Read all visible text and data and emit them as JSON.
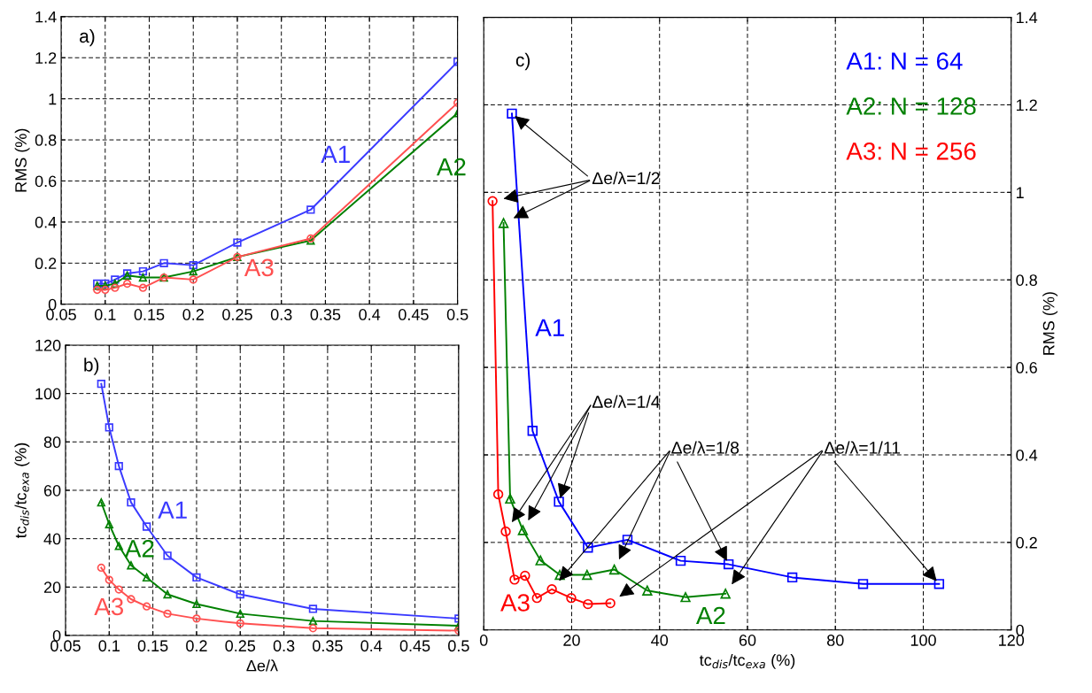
{
  "chart_data": [
    {
      "type": "line",
      "ylabel": "RMS (%)",
      "x": [
        0.0909,
        0.1,
        0.1111,
        0.125,
        0.1429,
        0.1667,
        0.2,
        0.25,
        0.3333,
        0.5
      ],
      "series": [
        {
          "color": "#3a3aff",
          "marker": "square",
          "values": [
            0.1,
            0.1,
            0.12,
            0.15,
            0.16,
            0.2,
            0.19,
            0.3,
            0.46,
            1.18
          ]
        },
        {
          "color": "#008000",
          "marker": "triangle",
          "values": [
            0.09,
            0.09,
            0.1,
            0.14,
            0.13,
            0.13,
            0.16,
            0.23,
            0.31,
            0.93
          ]
        },
        {
          "color": "#ff5050",
          "marker": "circle",
          "values": [
            0.07,
            0.07,
            0.08,
            0.1,
            0.08,
            0.13,
            0.12,
            0.23,
            0.32,
            0.98
          ]
        }
      ],
      "xlim": [
        0.05,
        0.5
      ],
      "xticks": [
        0.05,
        0.1,
        0.15,
        0.2,
        0.25,
        0.3,
        0.35,
        0.4,
        0.45,
        0.5
      ],
      "ylim": [
        0,
        1.4
      ],
      "yticks": [
        0,
        0.2,
        0.4,
        0.6,
        0.8,
        1,
        1.2,
        1.4
      ],
      "grid": true,
      "line_style": "solid",
      "annotations": [
        "a)",
        "A1",
        "A2",
        "A3"
      ]
    },
    {
      "type": "line",
      "xlabel": "Δe/λ",
      "ylabel": "tc$_{dis}$/tc$_{exa}$ (%)",
      "x": [
        0.0909,
        0.1,
        0.1111,
        0.125,
        0.1429,
        0.1667,
        0.2,
        0.25,
        0.3333,
        0.5
      ],
      "series": [
        {
          "color": "#3a3aff",
          "marker": "square",
          "values": [
            104,
            86,
            70,
            55,
            45,
            33,
            24,
            17,
            11,
            7
          ]
        },
        {
          "color": "#008000",
          "marker": "triangle",
          "values": [
            55,
            46,
            37,
            29,
            24,
            17,
            13,
            9,
            6,
            4
          ]
        },
        {
          "color": "#ff5050",
          "marker": "circle",
          "values": [
            28,
            23,
            19,
            15,
            12,
            9,
            7,
            5,
            3,
            2
          ]
        }
      ],
      "xlim": [
        0.05,
        0.5
      ],
      "xticks": [
        0.05,
        0.1,
        0.15,
        0.2,
        0.25,
        0.3,
        0.35,
        0.4,
        0.45,
        0.5
      ],
      "ylim": [
        0,
        120
      ],
      "yticks": [
        0,
        20,
        40,
        60,
        80,
        100,
        120
      ],
      "grid": true,
      "line_style": "solid",
      "annotations": [
        "b)",
        "A1",
        "A2",
        "A3"
      ]
    },
    {
      "type": "line",
      "xlabel": "tc$_{dis}$/tc$_{exa}$ (%)",
      "ylabel": "RMS (%)",
      "series": [
        {
          "name": "A1: N = 64",
          "color": "#0000ff",
          "marker": "square",
          "x": [
            103.6,
            86.3,
            70.2,
            55.7,
            44.8,
            32.7,
            23.7,
            17.1,
            11.1,
            6.4
          ],
          "values": [
            0.105,
            0.105,
            0.12,
            0.15,
            0.158,
            0.206,
            0.188,
            0.293,
            0.455,
            1.18
          ]
        },
        {
          "name": "A2: N = 128",
          "color": "#008000",
          "marker": "triangle",
          "x": [
            55,
            45.9,
            37.2,
            29.7,
            23.5,
            17.3,
            12.9,
            8.9,
            6.0,
            4.5
          ],
          "values": [
            0.083,
            0.075,
            0.09,
            0.138,
            0.126,
            0.126,
            0.159,
            0.228,
            0.3,
            0.93
          ]
        },
        {
          "name": "A3: N = 256",
          "color": "#ff0000",
          "marker": "circle",
          "x": [
            28.8,
            23.7,
            19.9,
            15.5,
            12.1,
            9.4,
            7.0,
            5.0,
            3.3,
            2.0
          ],
          "values": [
            0.061,
            0.059,
            0.073,
            0.093,
            0.073,
            0.124,
            0.115,
            0.225,
            0.31,
            0.98
          ]
        }
      ],
      "xlim": [
        0,
        120
      ],
      "xticks": [
        0,
        20,
        40,
        60,
        80,
        100,
        120
      ],
      "ylim": [
        0,
        1.4
      ],
      "yticks": [
        0,
        0.2,
        0.4,
        0.6,
        0.8,
        1,
        1.2,
        1.4
      ],
      "grid": true,
      "line_style": "solid",
      "legend": "top right",
      "annotations": [
        "c)",
        "A1",
        "A2",
        "A3",
        {
          "text": "Δe/λ=1/2",
          "x": 6.4,
          "y": 1.18
        },
        {
          "text": "Δe/λ=1/4",
          "x": 17.1,
          "y": 0.293
        },
        {
          "text": "Δe/λ=1/8",
          "x": 55.7,
          "y": 0.15
        },
        {
          "text": "Δe/λ=1/11",
          "x": 103.6,
          "y": 0.105
        }
      ]
    }
  ]
}
